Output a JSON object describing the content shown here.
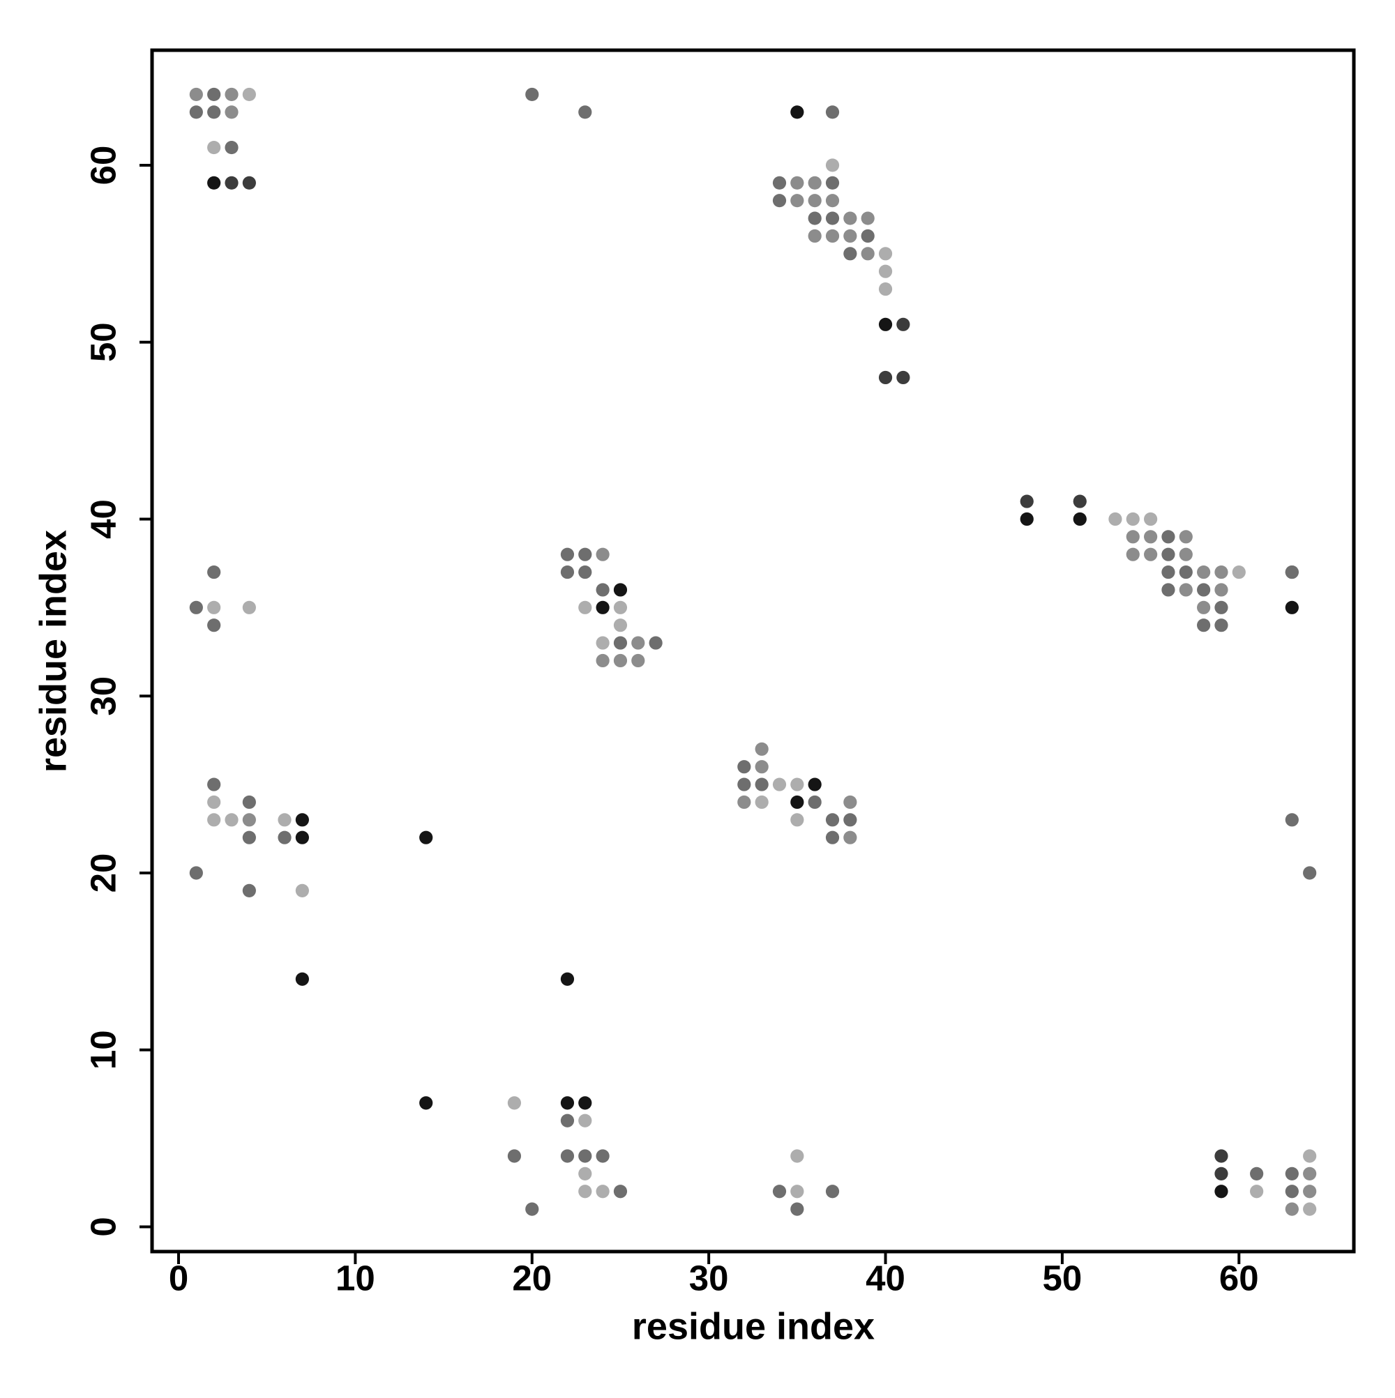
{
  "chart_data": {
    "type": "scatter",
    "xlabel": "residue index",
    "ylabel": "residue index",
    "xlim": [
      -1.5,
      66.5
    ],
    "ylim": [
      -1.4,
      66.5
    ],
    "xticks": [
      0,
      10,
      20,
      30,
      40,
      50,
      60
    ],
    "yticks": [
      0,
      10,
      20,
      30,
      40,
      50,
      60
    ],
    "series": [
      {
        "color": "#151515",
        "x": [
          2,
          35,
          40,
          48,
          51,
          63,
          25,
          24,
          36,
          35,
          7,
          7,
          14,
          7,
          22,
          14,
          22,
          23,
          59
        ],
        "y": [
          59,
          63,
          51,
          40,
          40,
          35,
          36,
          35,
          25,
          24,
          23,
          22,
          22,
          14,
          14,
          7,
          7,
          7,
          2
        ]
      },
      {
        "color": "#3c3c3c",
        "x": [
          3,
          4,
          41,
          40,
          41,
          48,
          51,
          59,
          59
        ],
        "y": [
          59,
          59,
          51,
          48,
          48,
          41,
          41,
          4,
          3
        ]
      },
      {
        "color": "#6e6e6e",
        "x": [
          2,
          1,
          2,
          3,
          20,
          23,
          37,
          34,
          37,
          34,
          36,
          37,
          39,
          38,
          56,
          56,
          56,
          57,
          63,
          56,
          58,
          59,
          63,
          58,
          59,
          2,
          1,
          2,
          22,
          23,
          22,
          23,
          24,
          25,
          27,
          32,
          32,
          33,
          36,
          37,
          38,
          37,
          2,
          4,
          4,
          6,
          1,
          4,
          63,
          64,
          22,
          19,
          22,
          23,
          24,
          25,
          20,
          34,
          37,
          35,
          61,
          63,
          63
        ],
        "y": [
          64,
          63,
          63,
          61,
          64,
          63,
          63,
          59,
          59,
          58,
          57,
          57,
          56,
          55,
          39,
          38,
          37,
          37,
          37,
          36,
          36,
          35,
          37,
          34,
          34,
          37,
          35,
          34,
          38,
          38,
          37,
          37,
          36,
          33,
          33,
          26,
          25,
          25,
          24,
          23,
          23,
          22,
          25,
          24,
          22,
          22,
          20,
          19,
          23,
          20,
          6,
          4,
          4,
          4,
          4,
          2,
          1,
          2,
          2,
          1,
          3,
          3,
          2
        ]
      },
      {
        "color": "#8c8c8c",
        "x": [
          1,
          3,
          3,
          35,
          36,
          35,
          36,
          37,
          38,
          39,
          36,
          37,
          38,
          39,
          54,
          55,
          57,
          54,
          55,
          57,
          58,
          59,
          57,
          59,
          58,
          24,
          26,
          24,
          25,
          26,
          33,
          33,
          32,
          38,
          38,
          4,
          64,
          64,
          63
        ],
        "y": [
          64,
          64,
          63,
          59,
          59,
          58,
          58,
          58,
          57,
          57,
          56,
          56,
          56,
          55,
          39,
          39,
          39,
          38,
          38,
          38,
          37,
          37,
          36,
          36,
          35,
          38,
          33,
          32,
          32,
          32,
          27,
          26,
          24,
          22,
          24,
          23,
          3,
          2,
          1
        ]
      },
      {
        "color": "#adadad",
        "x": [
          4,
          2,
          37,
          40,
          40,
          40,
          53,
          54,
          55,
          60,
          2,
          4,
          23,
          25,
          25,
          24,
          34,
          35,
          33,
          35,
          2,
          2,
          3,
          6,
          7,
          19,
          23,
          23,
          23,
          24,
          35,
          35,
          61,
          64,
          64
        ],
        "y": [
          64,
          61,
          60,
          55,
          54,
          53,
          40,
          40,
          40,
          37,
          35,
          35,
          35,
          35,
          34,
          33,
          25,
          25,
          24,
          23,
          24,
          23,
          23,
          23,
          19,
          7,
          6,
          3,
          2,
          2,
          4,
          2,
          2,
          4,
          1
        ]
      }
    ]
  }
}
